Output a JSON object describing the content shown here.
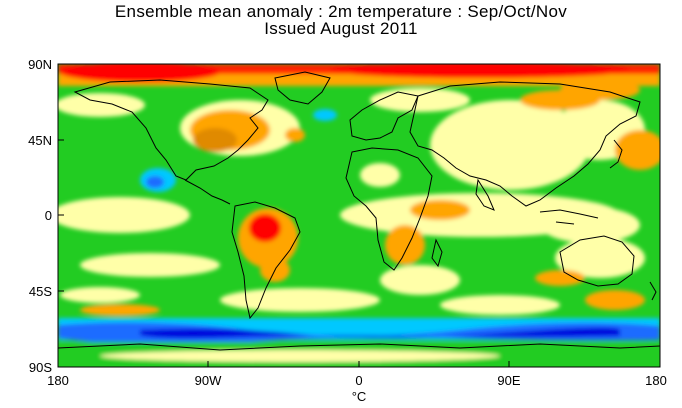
{
  "title": {
    "line1": "Ensemble mean anomaly : 2m temperature : Sep/Oct/Nov",
    "line2": "Issued August 2011"
  },
  "axes": {
    "lat_labels": [
      "90N",
      "45N",
      "0",
      "45S",
      "90S"
    ],
    "lon_labels": [
      "180",
      "90W",
      "0",
      "90E",
      "180"
    ],
    "unit": "°C"
  },
  "colors": {
    "cold_strong": "#0000dd",
    "cold": "#1e6cff",
    "cool": "#00c8ff",
    "neutral_cool": "#22cc22",
    "neutral_warm": "#ffffa8",
    "warm": "#ffa500",
    "hot": "#ff0000",
    "land_outline": "#000000"
  },
  "map": {
    "projection": "equirectangular",
    "lon_range": [
      -180,
      180
    ],
    "lat_range": [
      -90,
      90
    ],
    "coastlines": true,
    "country_borders": true
  }
}
